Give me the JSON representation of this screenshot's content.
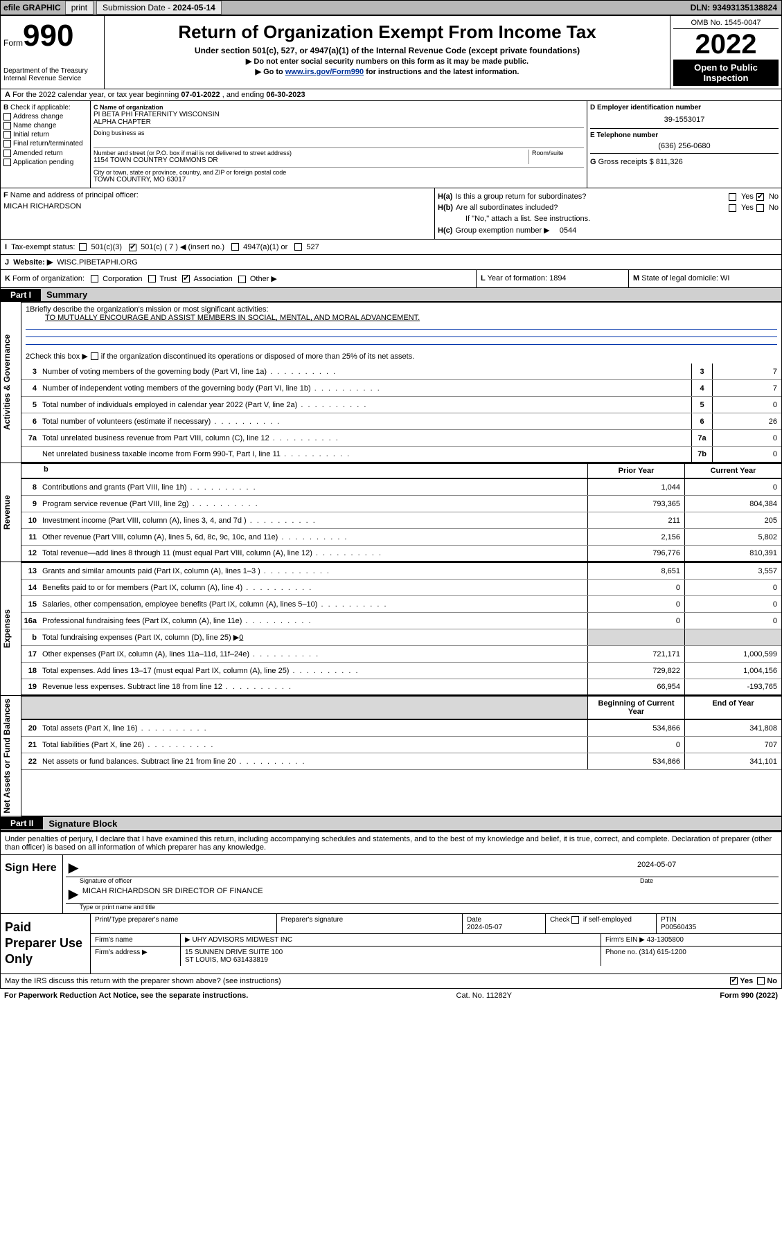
{
  "colors": {
    "topbar_bg": "#b8b8b8",
    "button_bg": "#e8e8e8",
    "black": "#000000",
    "link": "#003399",
    "rule_blue": "#0033aa",
    "shade": "#d8d8d8",
    "part_rest_bg": "#d0d0d0"
  },
  "fontsizes": {
    "title": 26,
    "year": 40,
    "n990": 44,
    "body": 11,
    "small": 9
  },
  "topbar": {
    "efile": "efile GRAPHIC",
    "print": "print",
    "submission_label": "Submission Date - ",
    "submission_date": "2024-05-14",
    "dln_label": "DLN: ",
    "dln": "93493135138824"
  },
  "header": {
    "form_word": "Form",
    "form_no": "990",
    "dept": "Department of the Treasury",
    "irs": "Internal Revenue Service",
    "title": "Return of Organization Exempt From Income Tax",
    "sub": "Under section 501(c), 527, or 4947(a)(1) of the Internal Revenue Code (except private foundations)",
    "instr1": "Do not enter social security numbers on this form as it may be made public.",
    "instr2_pre": "Go to ",
    "instr2_link": "www.irs.gov/Form990",
    "instr2_post": " for instructions and the latest information.",
    "omb": "OMB No. 1545-0047",
    "year": "2022",
    "open": "Open to Public Inspection"
  },
  "row_a": {
    "label": "A",
    "text_pre": "For the 2022 calendar year, or tax year beginning ",
    "begin": "07-01-2022",
    "mid": " , and ending ",
    "end": "06-30-2023"
  },
  "col_b": {
    "label": "B",
    "intro": " Check if applicable:",
    "items": [
      "Address change",
      "Name change",
      "Initial return",
      "Final return/terminated",
      "Amended return",
      "Application pending"
    ]
  },
  "col_c": {
    "name_label": "C Name of organization",
    "name1": "PI BETA PHI FRATERNITY WISCONSIN",
    "name2": "ALPHA CHAPTER",
    "dba_label": "Doing business as",
    "street_label": "Number and street (or P.O. box if mail is not delivered to street address)",
    "room_label": "Room/suite",
    "street": "1154 TOWN COUNTRY COMMONS DR",
    "city_label": "City or town, state or province, country, and ZIP or foreign postal code",
    "city": "TOWN COUNTRY, MO  63017"
  },
  "col_d": {
    "d_label": "D Employer identification number",
    "ein": "39-1553017",
    "e_label": "E Telephone number",
    "phone": "(636) 256-0680",
    "g_label": "G",
    "g_text": " Gross receipts $ ",
    "g_val": "811,326"
  },
  "row_f": {
    "label": "F",
    "text": " Name and address of principal officer:",
    "name": "MICAH RICHARDSON"
  },
  "row_h": {
    "ha_label": "H(a)",
    "ha_text": " Is this a group return for subordinates?",
    "hb_label": "H(b)",
    "hb_text": " Are all subordinates included?",
    "hb_note": "If \"No,\" attach a list. See instructions.",
    "hc_label": "H(c)",
    "hc_text": " Group exemption number ▶",
    "hc_val": "0544",
    "yes": "Yes",
    "no": "No"
  },
  "row_i": {
    "label": "I",
    "text": "Tax-exempt status:",
    "opts": [
      "501(c)(3)",
      "501(c) ( 7 ) ◀ (insert no.)",
      "4947(a)(1) or",
      "527"
    ],
    "checked_index": 1
  },
  "row_j": {
    "label": "J",
    "text": "Website: ▶",
    "val": "WISC.PIBETAPHI.ORG"
  },
  "row_k": {
    "label": "K",
    "text": " Form of organization:",
    "opts": [
      "Corporation",
      "Trust",
      "Association",
      "Other ▶"
    ],
    "checked_index": 2
  },
  "row_l": {
    "label": "L",
    "text": " Year of formation: ",
    "val": "1894"
  },
  "row_m": {
    "label": "M",
    "text": " State of legal domicile: ",
    "val": "WI"
  },
  "part1": {
    "tag": "Part I",
    "title": "Summary",
    "q1_label": "1",
    "q1_text": "Briefly describe the organization's mission or most significant activities:",
    "q1_val": "TO MUTUALLY ENCOURAGE AND ASSIST MEMBERS IN SOCIAL, MENTAL, AND MORAL ADVANCEMENT.",
    "q2_label": "2",
    "q2_text": "Check this box ▶",
    "q2_rest": " if the organization discontinued its operations or disposed of more than 25% of its net assets."
  },
  "vlabels": {
    "ag": "Activities & Governance",
    "rev": "Revenue",
    "exp": "Expenses",
    "na": "Net Assets or Fund Balances"
  },
  "gov_rows": [
    {
      "n": "3",
      "d": "Number of voting members of the governing body (Part VI, line 1a)",
      "box": "3",
      "v": "7"
    },
    {
      "n": "4",
      "d": "Number of independent voting members of the governing body (Part VI, line 1b)",
      "box": "4",
      "v": "7"
    },
    {
      "n": "5",
      "d": "Total number of individuals employed in calendar year 2022 (Part V, line 2a)",
      "box": "5",
      "v": "0"
    },
    {
      "n": "6",
      "d": "Total number of volunteers (estimate if necessary)",
      "box": "6",
      "v": "26"
    },
    {
      "n": "7a",
      "d": "Total unrelated business revenue from Part VIII, column (C), line 12",
      "box": "7a",
      "v": "0"
    },
    {
      "n": "",
      "d": "Net unrelated business taxable income from Form 990-T, Part I, line 11",
      "box": "7b",
      "v": "0"
    }
  ],
  "col_hdrs": {
    "b": "b",
    "prior": "Prior Year",
    "current": "Current Year",
    "boy": "Beginning of Current Year",
    "eoy": "End of Year"
  },
  "rev_rows": [
    {
      "n": "8",
      "d": "Contributions and grants (Part VIII, line 1h)",
      "p": "1,044",
      "c": "0"
    },
    {
      "n": "9",
      "d": "Program service revenue (Part VIII, line 2g)",
      "p": "793,365",
      "c": "804,384"
    },
    {
      "n": "10",
      "d": "Investment income (Part VIII, column (A), lines 3, 4, and 7d )",
      "p": "211",
      "c": "205"
    },
    {
      "n": "11",
      "d": "Other revenue (Part VIII, column (A), lines 5, 6d, 8c, 9c, 10c, and 11e)",
      "p": "2,156",
      "c": "5,802"
    },
    {
      "n": "12",
      "d": "Total revenue—add lines 8 through 11 (must equal Part VIII, column (A), line 12)",
      "p": "796,776",
      "c": "810,391"
    }
  ],
  "exp_rows": [
    {
      "n": "13",
      "d": "Grants and similar amounts paid (Part IX, column (A), lines 1–3 )",
      "p": "8,651",
      "c": "3,557"
    },
    {
      "n": "14",
      "d": "Benefits paid to or for members (Part IX, column (A), line 4)",
      "p": "0",
      "c": "0"
    },
    {
      "n": "15",
      "d": "Salaries, other compensation, employee benefits (Part IX, column (A), lines 5–10)",
      "p": "0",
      "c": "0"
    },
    {
      "n": "16a",
      "d": "Professional fundraising fees (Part IX, column (A), line 11e)",
      "p": "0",
      "c": "0"
    }
  ],
  "exp_b": {
    "n": "b",
    "d": "Total fundraising expenses (Part IX, column (D), line 25) ▶",
    "v": "0"
  },
  "exp_rows2": [
    {
      "n": "17",
      "d": "Other expenses (Part IX, column (A), lines 11a–11d, 11f–24e)",
      "p": "721,171",
      "c": "1,000,599"
    },
    {
      "n": "18",
      "d": "Total expenses. Add lines 13–17 (must equal Part IX, column (A), line 25)",
      "p": "729,822",
      "c": "1,004,156"
    },
    {
      "n": "19",
      "d": "Revenue less expenses. Subtract line 18 from line 12",
      "p": "66,954",
      "c": "-193,765"
    }
  ],
  "na_rows": [
    {
      "n": "20",
      "d": "Total assets (Part X, line 16)",
      "p": "534,866",
      "c": "341,808"
    },
    {
      "n": "21",
      "d": "Total liabilities (Part X, line 26)",
      "p": "0",
      "c": "707"
    },
    {
      "n": "22",
      "d": "Net assets or fund balances. Subtract line 21 from line 20",
      "p": "534,866",
      "c": "341,101"
    }
  ],
  "part2": {
    "tag": "Part II",
    "title": "Signature Block",
    "decl": "Under penalties of perjury, I declare that I have examined this return, including accompanying schedules and statements, and to the best of my knowledge and belief, it is true, correct, and complete. Declaration of preparer (other than officer) is based on all information of which preparer has any knowledge."
  },
  "sign": {
    "here": "Sign Here",
    "sig_label": "Signature of officer",
    "date_label": "Date",
    "date": "2024-05-07",
    "name": "MICAH RICHARDSON  SR DIRECTOR OF FINANCE",
    "name_label": "Type or print name and title"
  },
  "paid": {
    "label": "Paid Preparer Use Only",
    "r1": {
      "c1": "Print/Type preparer's name",
      "c2": "Preparer's signature",
      "c3l": "Date",
      "c3v": "2024-05-07",
      "c4l": "Check",
      "c4r": "if self-employed",
      "c5l": "PTIN",
      "c5v": "P00560435"
    },
    "r2": {
      "c1": "Firm's name",
      "c1v": "UHY ADVISORS MIDWEST INC",
      "c2": "Firm's EIN ▶",
      "c2v": "43-1305800"
    },
    "r3": {
      "c1": "Firm's address ▶",
      "c1v1": "15 SUNNEN DRIVE SUITE 100",
      "c1v2": "ST LOUIS, MO  631433819",
      "c2": "Phone no. ",
      "c2v": "(314) 615-1200"
    }
  },
  "foot_q": {
    "text": "May the IRS discuss this return with the preparer shown above? (see instructions)",
    "yes": "Yes",
    "no": "No"
  },
  "footer": {
    "left": "For Paperwork Reduction Act Notice, see the separate instructions.",
    "mid": "Cat. No. 11282Y",
    "right_pre": "Form ",
    "right_b": "990",
    "right_post": " (2022)"
  }
}
